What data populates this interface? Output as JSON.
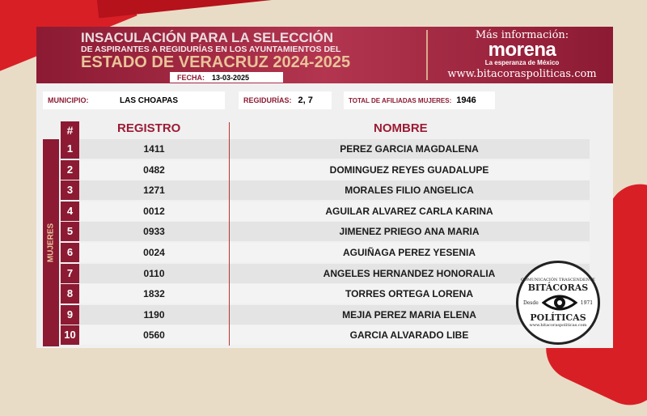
{
  "header": {
    "line1": "INSACULACIÓN PARA LA SELECCIÓN",
    "line2": "DE ASPIRANTES A REGIDURÍAS EN LOS AYUNTAMIENTOS DEL",
    "line3": "ESTADO DE VERACRUZ 2024-2025",
    "fecha_label": "FECHA:",
    "fecha": "13-03-2025"
  },
  "info": {
    "mas": "Más información:",
    "brand": "morena",
    "slogan": "La esperanza de México",
    "web": "www.bitacoraspoliticas.com"
  },
  "bar": {
    "municipio_label": "MUNICIPIO:",
    "municipio": "LAS CHOAPAS",
    "regidurias_label": "REGIDURÍAS:",
    "regidurias": "2, 7",
    "total_label": "TOTAL DE AFILIADAS MUJERES:",
    "total": "1946"
  },
  "table": {
    "col_num": "#",
    "col_registro": "REGISTRO",
    "col_nombre": "NOMBRE",
    "group": "MUJERES",
    "rows": [
      {
        "n": "1",
        "r": "1411",
        "nombre": "PEREZ GARCIA MAGDALENA"
      },
      {
        "n": "2",
        "r": "0482",
        "nombre": "DOMINGUEZ REYES GUADALUPE"
      },
      {
        "n": "3",
        "r": "1271",
        "nombre": "MORALES FILIO ANGELICA"
      },
      {
        "n": "4",
        "r": "0012",
        "nombre": "AGUILAR ALVAREZ CARLA KARINA"
      },
      {
        "n": "5",
        "r": "0933",
        "nombre": "JIMENEZ PRIEGO ANA MARIA"
      },
      {
        "n": "6",
        "r": "0024",
        "nombre": "AGUIÑAGA PEREZ YESENIA"
      },
      {
        "n": "7",
        "r": "0110",
        "nombre": "ANGELES HERNANDEZ HONORALIA"
      },
      {
        "n": "8",
        "r": "1832",
        "nombre": "TORRES ORTEGA LORENA"
      },
      {
        "n": "9",
        "r": "1190",
        "nombre": "MEJIA PEREZ MARIA ELENA"
      },
      {
        "n": "10",
        "r": "0560",
        "nombre": "GARCIA ALVARADO LIBE"
      }
    ]
  },
  "seal": {
    "top": "COMUNICACIÓN TRASCENDENTE",
    "name1": "BITÁCORAS",
    "desde": "Desde",
    "year": "1971",
    "name2": "POLÍTICAS",
    "web": "www.bitacoraspoliticas.com"
  }
}
